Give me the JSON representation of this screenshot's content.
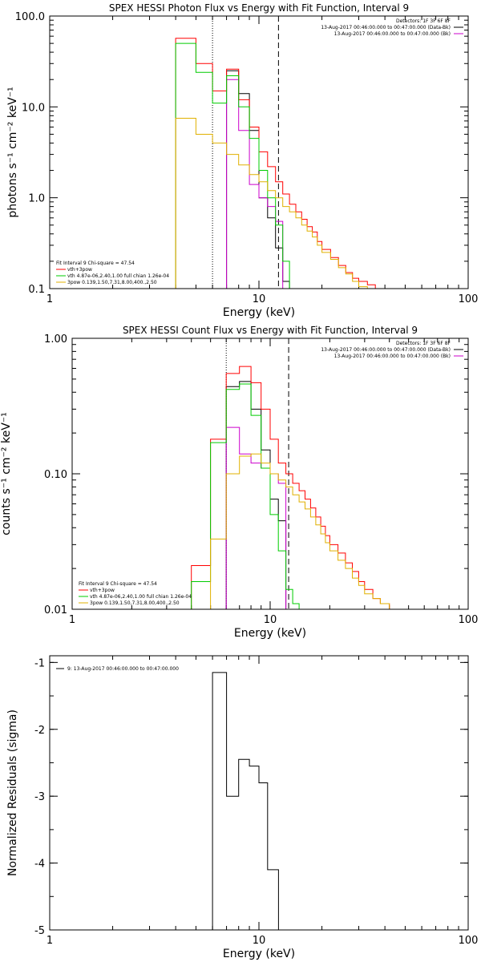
{
  "chart_data": [
    {
      "type": "line",
      "step": true,
      "title": "SPEX HESSI Photon Flux vs Energy with Fit Function, Interval 9",
      "xlabel": "Energy (keV)",
      "ylabel": "photons s⁻¹ cm⁻² keV⁻¹",
      "xscale": "log",
      "yscale": "log",
      "xlim": [
        1,
        100
      ],
      "ylim": [
        0.1,
        100
      ],
      "xticks": [
        {
          "v": 1,
          "label": "1"
        },
        {
          "v": 10,
          "label": "10"
        },
        {
          "v": 100,
          "label": "100"
        }
      ],
      "yticks": [
        {
          "v": 0.1,
          "label": "0.1"
        },
        {
          "v": 1,
          "label": "1.0"
        },
        {
          "v": 10,
          "label": "10.0"
        },
        {
          "v": 100,
          "label": "100.0"
        }
      ],
      "vlines": [
        {
          "x": 6.0,
          "style": "dotted"
        },
        {
          "x": 12.4,
          "style": "dashed"
        }
      ],
      "legend_top_right": [
        {
          "text": "Detectors: 1F 3F 6F 8F",
          "color": ""
        },
        {
          "text": "13-Aug-2017 00:46:00.000 to 00:47:00.000 (Data-Bk)",
          "color": "#000000"
        },
        {
          "text": "13-Aug-2017 00:46:00.000 to 00:47:00.000 (Bk)",
          "color": "#cc00cc"
        }
      ],
      "legend_bottom_left": [
        {
          "text": "Fit Interval 9   Chi-square = 47.54",
          "color": ""
        },
        {
          "text": "vth+3pow",
          "color": "#ff0000"
        },
        {
          "text": "vth 4.87e-06,2.40,1.00  full chian 1.26e-04",
          "color": "#00cc00"
        },
        {
          "text": "3pow 0.139,1.50,7.31,8.00,400.,2.50",
          "color": "#e0b000"
        }
      ],
      "edges": [
        4.0,
        5.0,
        6.0,
        7.0,
        8.0,
        9.0,
        10.0,
        11.0,
        12.0,
        13.0,
        14.0,
        15.0,
        16.0,
        17.0,
        18.0,
        19.0,
        20.0,
        22.0,
        24.0,
        26.0,
        28.0,
        30.0,
        33.0,
        36.0,
        40.0,
        45.0
      ],
      "series": [
        {
          "key": "data",
          "color": "#000000",
          "values": [
            null,
            null,
            null,
            25,
            14,
            5.5,
            1.0,
            0.6,
            0.28,
            0.12,
            0.1,
            null,
            null,
            null,
            null,
            null,
            null,
            null,
            null,
            null,
            null,
            null,
            null,
            null,
            null
          ]
        },
        {
          "key": "bk",
          "color": "#cc00cc",
          "values": [
            null,
            null,
            0.1,
            20,
            5.5,
            1.4,
            1.0,
            0.8,
            0.55,
            0.1,
            null,
            null,
            null,
            null,
            null,
            null,
            null,
            null,
            null,
            null,
            null,
            null,
            null,
            null,
            null
          ]
        },
        {
          "key": "total",
          "color": "#ff0000",
          "values": [
            57,
            30,
            15,
            26,
            12,
            6.0,
            3.2,
            2.2,
            1.5,
            1.1,
            0.85,
            0.7,
            0.58,
            0.48,
            0.42,
            0.33,
            0.27,
            0.22,
            0.18,
            0.15,
            0.13,
            0.12,
            0.11,
            null,
            null
          ]
        },
        {
          "key": "thermal",
          "color": "#00cc00",
          "values": [
            50,
            24,
            11,
            22,
            10,
            4.5,
            2.0,
            1.0,
            0.5,
            0.2,
            0.1,
            null,
            null,
            null,
            null,
            null,
            null,
            null,
            null,
            null,
            null,
            null,
            null,
            null,
            null
          ]
        },
        {
          "key": "nonthermal",
          "color": "#e0b000",
          "values": [
            7.5,
            5.0,
            4.0,
            3.0,
            2.3,
            1.8,
            1.5,
            1.2,
            1.0,
            0.8,
            0.7,
            0.6,
            0.5,
            0.43,
            0.37,
            0.3,
            0.25,
            0.21,
            0.17,
            0.145,
            0.12,
            0.105,
            0.1,
            null,
            null
          ]
        }
      ]
    },
    {
      "type": "line",
      "step": true,
      "title": "SPEX HESSI Count Flux vs Energy with Fit Function, Interval 9",
      "xlabel": "Energy (keV)",
      "ylabel": "counts s⁻¹ cm⁻² keV⁻¹",
      "xscale": "log",
      "yscale": "log",
      "xlim": [
        1,
        100
      ],
      "ylim": [
        0.01,
        1
      ],
      "xticks": [
        {
          "v": 1,
          "label": "1"
        },
        {
          "v": 10,
          "label": "10"
        },
        {
          "v": 100,
          "label": "100"
        }
      ],
      "yticks": [
        {
          "v": 0.01,
          "label": "0.01"
        },
        {
          "v": 0.1,
          "label": "0.10"
        },
        {
          "v": 1,
          "label": "1.00"
        }
      ],
      "vlines": [
        {
          "x": 6.0,
          "style": "dotted"
        },
        {
          "x": 12.4,
          "style": "dashed"
        }
      ],
      "legend_top_right": [
        {
          "text": "Detectors: 1F 3F 6F 8F",
          "color": ""
        },
        {
          "text": "13-Aug-2017 00:46:00.000 to 00:47:00.000 (Data-Bk)",
          "color": "#000000"
        },
        {
          "text": "13-Aug-2017 00:46:00.000 to 00:47:00.000 (Bk)",
          "color": "#cc00cc"
        }
      ],
      "legend_bottom_left": [
        {
          "text": "Fit Interval 9   Chi-square = 47.54",
          "color": ""
        },
        {
          "text": "vth+3pow",
          "color": "#ff0000"
        },
        {
          "text": "vth 4.87e-06,2.40,1.00  full chian 1.26e-04",
          "color": "#00cc00"
        },
        {
          "text": "3pow 0.139,1.50,7.31,8.00,400.,2.50",
          "color": "#e0b000"
        }
      ],
      "edges": [
        4.0,
        5.0,
        6.0,
        7.0,
        8.0,
        9.0,
        10.0,
        11.0,
        12.0,
        13.0,
        14.0,
        15.0,
        16.0,
        17.0,
        18.0,
        19.0,
        20.0,
        22.0,
        24.0,
        26.0,
        28.0,
        30.0,
        33.0,
        36.0,
        40.0,
        45.0
      ],
      "series": [
        {
          "key": "data",
          "color": "#000000",
          "values": [
            null,
            null,
            0.44,
            0.48,
            0.3,
            0.15,
            0.065,
            0.045,
            0.01,
            null,
            null,
            null,
            null,
            null,
            null,
            null,
            null,
            null,
            null,
            null,
            null,
            null,
            null,
            null,
            null
          ]
        },
        {
          "key": "bk",
          "color": "#cc00cc",
          "values": [
            null,
            null,
            0.22,
            0.14,
            0.12,
            0.11,
            0.1,
            0.085,
            0.01,
            null,
            null,
            null,
            null,
            null,
            null,
            null,
            null,
            null,
            null,
            null,
            null,
            null,
            null,
            null,
            null
          ]
        },
        {
          "key": "total",
          "color": "#ff0000",
          "values": [
            0.021,
            0.18,
            0.55,
            0.62,
            0.47,
            0.3,
            0.18,
            0.12,
            0.1,
            0.085,
            0.075,
            0.065,
            0.056,
            0.048,
            0.041,
            0.035,
            0.03,
            0.026,
            0.022,
            0.019,
            0.016,
            0.014,
            0.012,
            0.011,
            0.01
          ]
        },
        {
          "key": "thermal",
          "color": "#00cc00",
          "values": [
            0.016,
            0.17,
            0.42,
            0.46,
            0.27,
            0.11,
            0.05,
            0.027,
            0.014,
            0.011,
            null,
            null,
            null,
            null,
            null,
            null,
            null,
            null,
            null,
            null,
            null,
            null,
            null,
            null,
            null
          ]
        },
        {
          "key": "nonthermal",
          "color": "#e0b000",
          "values": [
            0.01,
            0.033,
            0.1,
            0.135,
            0.14,
            0.12,
            0.1,
            0.09,
            0.08,
            0.07,
            0.062,
            0.055,
            0.048,
            0.042,
            0.036,
            0.031,
            0.027,
            0.023,
            0.02,
            0.017,
            0.015,
            0.013,
            0.012,
            0.011,
            0.01
          ]
        }
      ]
    },
    {
      "type": "line",
      "step": true,
      "title": "",
      "xlabel": "Energy (keV)",
      "ylabel": "Normalized Residuals (sigma)",
      "xscale": "log",
      "yscale": "linear",
      "xlim": [
        1,
        100
      ],
      "ylim": [
        -5,
        -0.9
      ],
      "xticks": [
        {
          "v": 1,
          "label": "1"
        },
        {
          "v": 10,
          "label": "10"
        },
        {
          "v": 100,
          "label": "100"
        }
      ],
      "yticks": [
        {
          "v": -1,
          "label": "-1"
        },
        {
          "v": -2,
          "label": "-2"
        },
        {
          "v": -3,
          "label": "-3"
        },
        {
          "v": -4,
          "label": "-4"
        },
        {
          "v": -5,
          "label": "-5"
        }
      ],
      "vlines": [],
      "legend_top_left": [
        {
          "text": "9: 13-Aug-2017 00:46:00.000 to 00:47:00.000",
          "color": "#000000"
        }
      ],
      "edges": [
        6.0,
        7.0,
        8.0,
        9.0,
        10.0,
        11.0,
        12.4
      ],
      "series": [
        {
          "key": "residuals",
          "color": "#000000",
          "values": [
            -1.15,
            -3.0,
            -2.45,
            -2.55,
            -2.8,
            -4.1
          ]
        }
      ]
    }
  ]
}
